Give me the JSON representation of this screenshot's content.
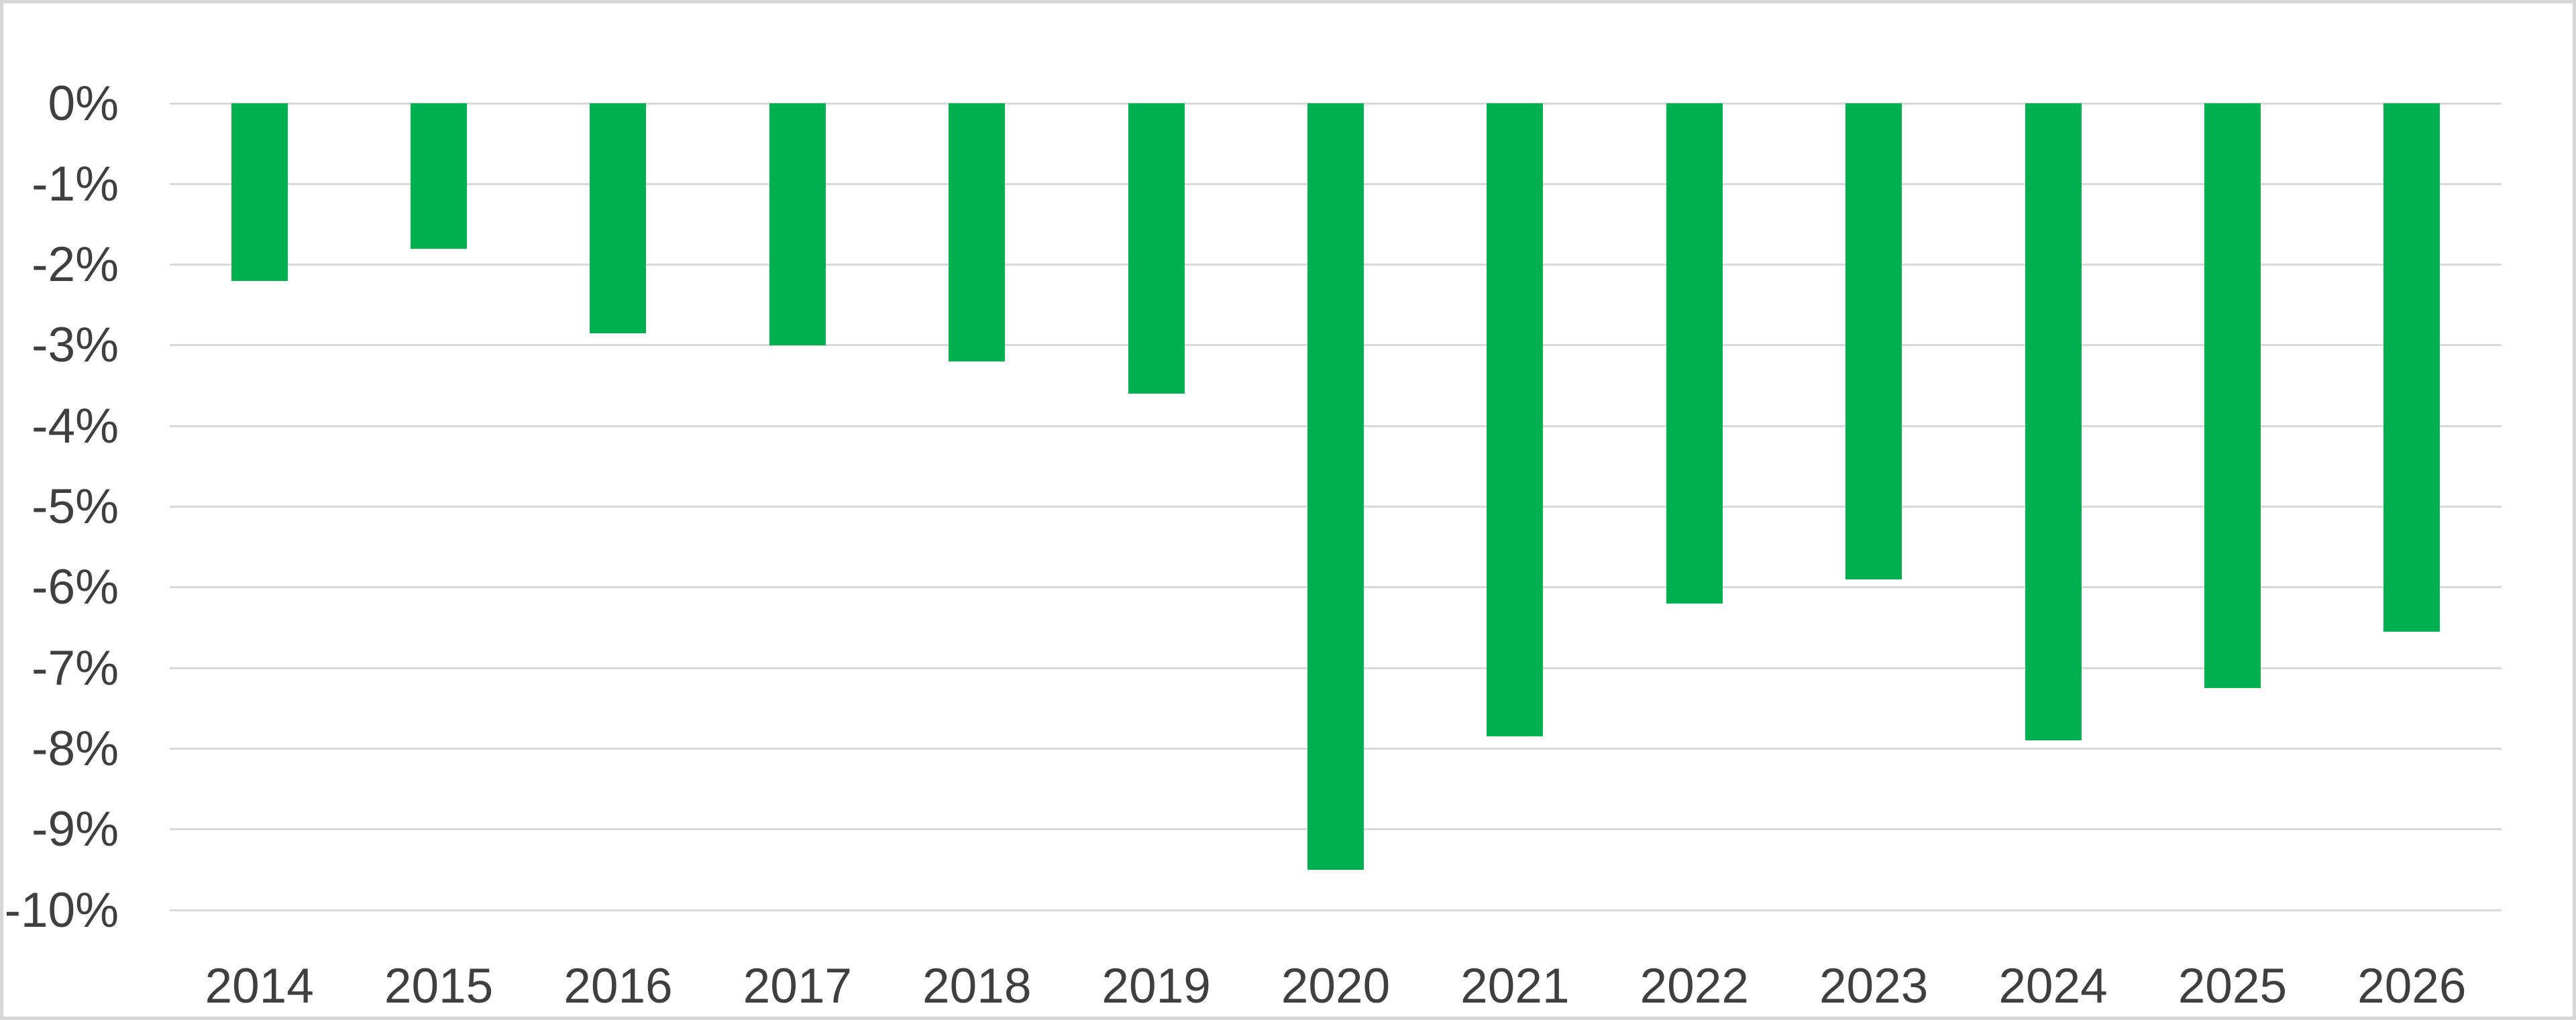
{
  "figure": {
    "background": "#FFFFFF",
    "border_color": "#D6D6D6"
  },
  "chart_data": {
    "type": "bar",
    "title": "",
    "xlabel": "",
    "ylabel": "",
    "categories": [
      "2014",
      "2015",
      "2016",
      "2017",
      "2018",
      "2019",
      "2020",
      "2021",
      "2022",
      "2023",
      "2024",
      "2025",
      "2026"
    ],
    "values": [
      -2.2,
      -1.8,
      -2.85,
      -3.0,
      -3.2,
      -3.6,
      -9.5,
      -7.85,
      -6.2,
      -5.9,
      -7.9,
      -7.25,
      -6.55
    ],
    "value_unit": "%",
    "ylim": [
      -10,
      0
    ],
    "yticks": [
      0,
      -1,
      -2,
      -3,
      -4,
      -5,
      -6,
      -7,
      -8,
      -9,
      -10
    ],
    "ytick_labels": [
      "0%",
      "-1%",
      "-2%",
      "-3%",
      "-4%",
      "-5%",
      "-6%",
      "-7%",
      "-8%",
      "-9%",
      "-10%"
    ],
    "grid": true,
    "legend": null,
    "bar_color": "#00B050",
    "gridline_color": "#D9D9D9",
    "axis_label_color": "#3F3F3F"
  }
}
